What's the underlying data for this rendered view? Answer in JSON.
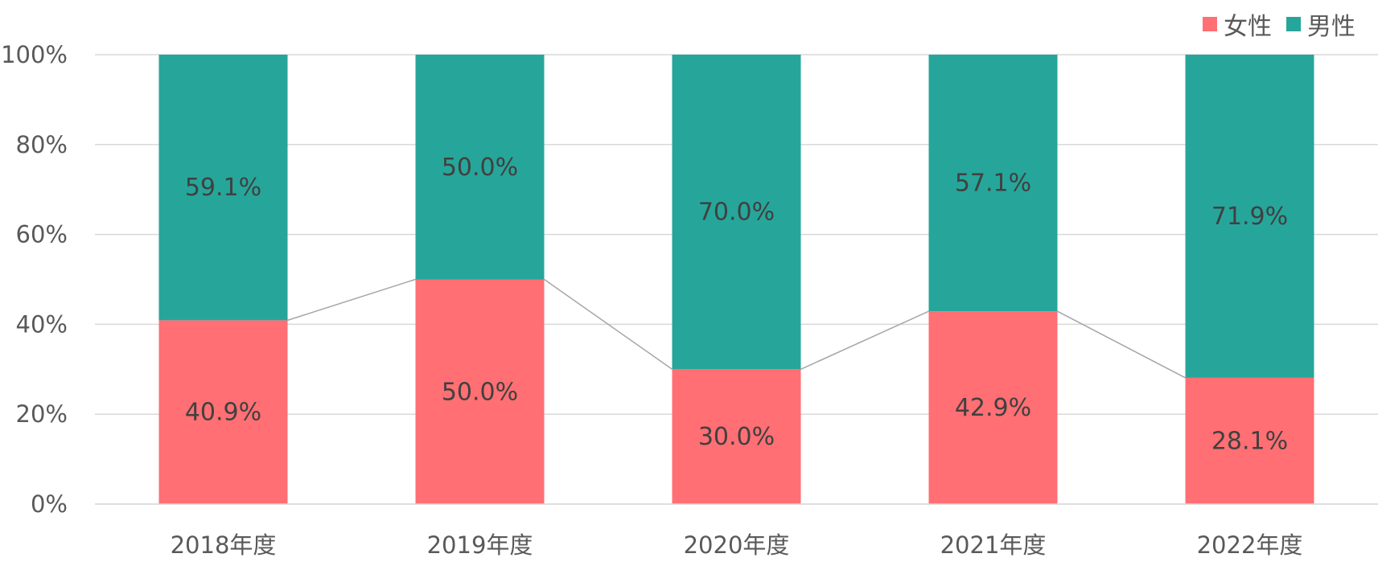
{
  "chart_data": {
    "type": "bar",
    "stacked": true,
    "categories": [
      "2018年度",
      "2019年度",
      "2020年度",
      "2021年度",
      "2022年度"
    ],
    "series": [
      {
        "name": "女性",
        "values": [
          40.9,
          50.0,
          30.0,
          42.9,
          28.1
        ],
        "color": "#ff6f73"
      },
      {
        "name": "男性",
        "values": [
          59.1,
          50.0,
          70.0,
          57.1,
          71.9
        ],
        "color": "#26a69a"
      }
    ],
    "ylim": [
      0,
      100
    ],
    "yticks": [
      "0%",
      "20%",
      "40%",
      "60%",
      "80%",
      "100%"
    ],
    "grid": true,
    "legend": "top-right",
    "series_lines": true
  }
}
